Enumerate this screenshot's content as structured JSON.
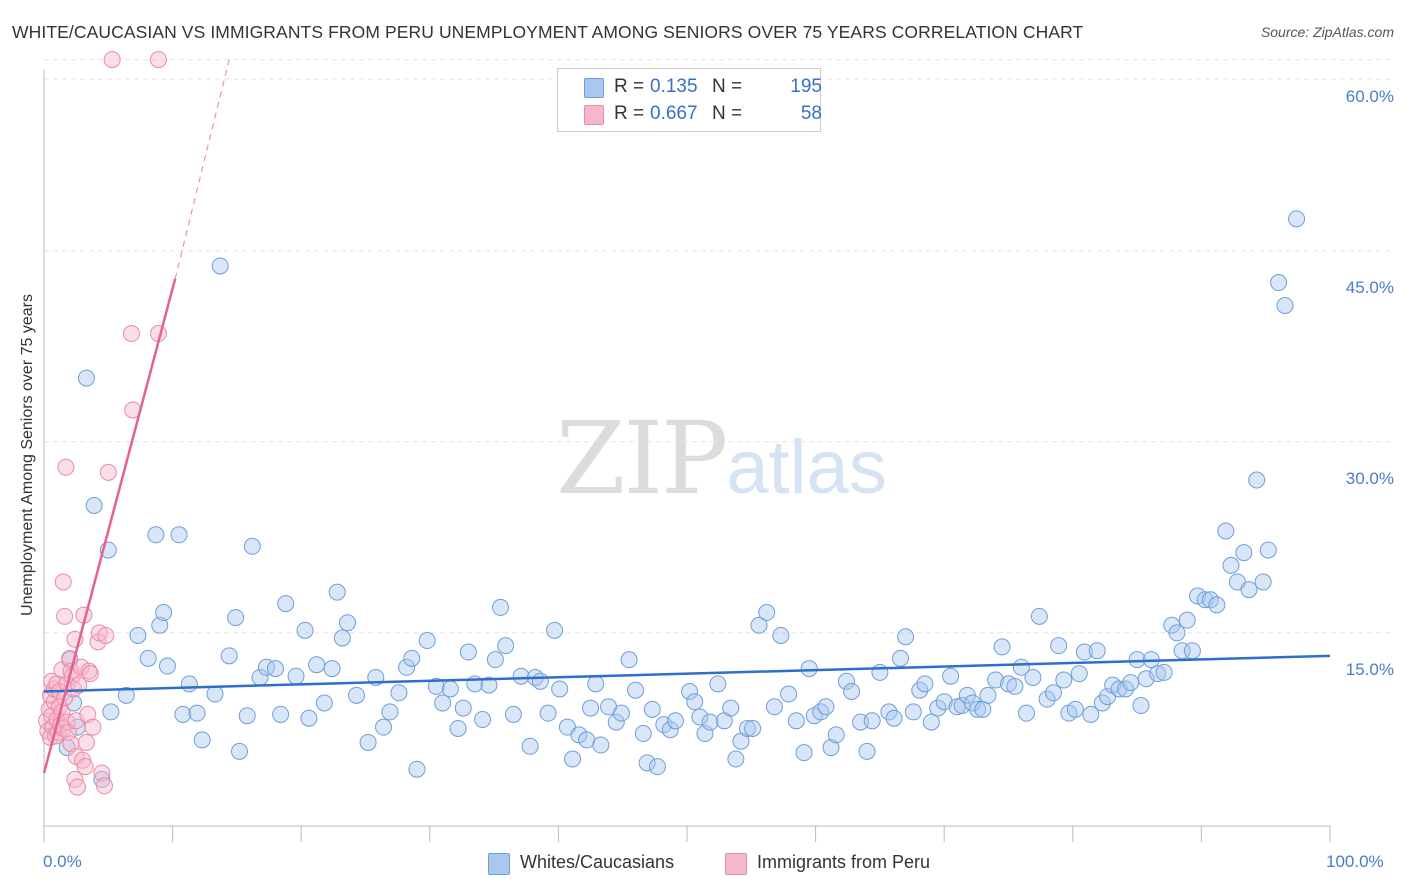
{
  "title": "WHITE/CAUCASIAN VS IMMIGRANTS FROM PERU UNEMPLOYMENT AMONG SENIORS OVER 75 YEARS CORRELATION CHART",
  "source": "Source: ZipAtlas.com",
  "watermark": {
    "zip": "ZIP",
    "atlas": "atlas"
  },
  "legend_top": [
    {
      "r_label": "R =",
      "r_value": "0.135",
      "n_label": "N =",
      "n_value": "195"
    },
    {
      "r_label": "R =",
      "r_value": "0.667",
      "n_label": "N =",
      "n_value": "58"
    }
  ],
  "legend_bottom": [
    "Whites/Caucasians",
    "Immigrants from Peru"
  ],
  "colors": {
    "series1_fill": "#a9c8ef",
    "series1_stroke": "#6f9ed8",
    "series1_line": "#2e6fcc",
    "series2_fill": "#f6b7ca",
    "series2_stroke": "#e98aa8",
    "series2_line": "#e6628e",
    "tick_label": "#4a7ccc",
    "grid": "#e2e2e2"
  },
  "chart_data": {
    "type": "scatter",
    "title": "WHITE/CAUCASIAN VS IMMIGRANTS FROM PERU UNEMPLOYMENT AMONG SENIORS OVER 75 YEARS CORRELATION CHART",
    "xlabel": "",
    "ylabel": "Unemployment Among Seniors over 75 years",
    "xlim": [
      0,
      100
    ],
    "ylim": [
      0,
      62
    ],
    "y_ticks": [
      15,
      30,
      45,
      60
    ],
    "y_tick_labels": [
      "15.0%",
      "30.0%",
      "45.0%",
      "60.0%"
    ],
    "x_tick_labels": [
      "0.0%",
      "100.0%"
    ],
    "grid": true,
    "legend": "top-center",
    "series": [
      {
        "name": "Whites/Caucasians",
        "R": 0.135,
        "N": 195,
        "trend": {
          "x": [
            0,
            100
          ],
          "y": [
            10.4,
            13.2
          ],
          "style": "solid"
        },
        "points": [
          [
            1.8,
            6.0
          ],
          [
            2.0,
            12.9
          ],
          [
            2.3,
            9.5
          ],
          [
            2.6,
            7.6
          ],
          [
            3.3,
            35.0
          ],
          [
            3.9,
            25.0
          ],
          [
            4.5,
            3.5
          ],
          [
            5.0,
            21.5
          ],
          [
            5.2,
            8.8
          ],
          [
            6.4,
            10.1
          ],
          [
            7.3,
            14.8
          ],
          [
            8.1,
            13.0
          ],
          [
            8.7,
            22.7
          ],
          [
            9.0,
            15.6
          ],
          [
            9.3,
            16.6
          ],
          [
            9.6,
            12.4
          ],
          [
            10.5,
            22.7
          ],
          [
            10.8,
            8.6
          ],
          [
            11.3,
            11.0
          ],
          [
            11.9,
            8.7
          ],
          [
            12.3,
            6.6
          ],
          [
            13.3,
            10.2
          ],
          [
            13.7,
            43.8
          ],
          [
            14.4,
            13.2
          ],
          [
            14.9,
            16.2
          ],
          [
            15.2,
            5.7
          ],
          [
            15.8,
            8.5
          ],
          [
            16.2,
            21.8
          ],
          [
            16.8,
            11.5
          ],
          [
            17.3,
            12.3
          ],
          [
            18.0,
            12.2
          ],
          [
            18.4,
            8.6
          ],
          [
            18.8,
            17.3
          ],
          [
            19.6,
            11.6
          ],
          [
            20.3,
            15.2
          ],
          [
            20.6,
            8.3
          ],
          [
            21.2,
            12.5
          ],
          [
            21.8,
            9.5
          ],
          [
            22.4,
            12.2
          ],
          [
            22.8,
            18.2
          ],
          [
            23.2,
            14.6
          ],
          [
            23.6,
            15.8
          ],
          [
            24.3,
            10.1
          ],
          [
            25.2,
            6.4
          ],
          [
            25.8,
            11.5
          ],
          [
            26.4,
            7.6
          ],
          [
            26.9,
            8.8
          ],
          [
            27.6,
            10.3
          ],
          [
            28.2,
            12.3
          ],
          [
            28.6,
            13.0
          ],
          [
            29.0,
            4.3
          ],
          [
            29.8,
            14.4
          ],
          [
            30.5,
            10.8
          ],
          [
            31.0,
            9.5
          ],
          [
            31.6,
            10.6
          ],
          [
            32.2,
            7.5
          ],
          [
            32.6,
            9.1
          ],
          [
            33.0,
            13.5
          ],
          [
            33.5,
            11.0
          ],
          [
            34.1,
            8.2
          ],
          [
            34.6,
            10.9
          ],
          [
            35.1,
            12.9
          ],
          [
            35.5,
            17.0
          ],
          [
            35.9,
            14.0
          ],
          [
            36.5,
            8.6
          ],
          [
            37.1,
            11.6
          ],
          [
            37.8,
            6.1
          ],
          [
            38.2,
            11.5
          ],
          [
            38.6,
            11.2
          ],
          [
            39.2,
            8.7
          ],
          [
            39.7,
            15.2
          ],
          [
            40.1,
            10.6
          ],
          [
            40.7,
            7.6
          ],
          [
            41.1,
            5.1
          ],
          [
            41.6,
            7.0
          ],
          [
            42.2,
            6.6
          ],
          [
            42.5,
            9.1
          ],
          [
            42.9,
            11.0
          ],
          [
            43.3,
            6.2
          ],
          [
            43.9,
            9.2
          ],
          [
            44.5,
            8.0
          ],
          [
            44.9,
            8.7
          ],
          [
            45.5,
            12.9
          ],
          [
            46.0,
            10.5
          ],
          [
            46.6,
            7.1
          ],
          [
            46.9,
            4.8
          ],
          [
            47.3,
            9.0
          ],
          [
            47.7,
            4.5
          ],
          [
            48.2,
            7.8
          ],
          [
            48.7,
            7.4
          ],
          [
            49.1,
            8.1
          ],
          [
            50.2,
            10.4
          ],
          [
            50.6,
            9.6
          ],
          [
            51.0,
            8.4
          ],
          [
            51.4,
            7.1
          ],
          [
            51.8,
            8.0
          ],
          [
            52.4,
            11.0
          ],
          [
            52.9,
            8.1
          ],
          [
            53.4,
            9.1
          ],
          [
            53.8,
            5.1
          ],
          [
            54.2,
            6.5
          ],
          [
            54.7,
            7.5
          ],
          [
            55.1,
            7.5
          ],
          [
            55.6,
            15.6
          ],
          [
            56.2,
            16.6
          ],
          [
            56.8,
            9.2
          ],
          [
            57.3,
            14.8
          ],
          [
            57.9,
            10.2
          ],
          [
            58.5,
            8.1
          ],
          [
            59.1,
            5.6
          ],
          [
            59.5,
            12.2
          ],
          [
            59.9,
            8.5
          ],
          [
            60.4,
            8.8
          ],
          [
            60.8,
            9.2
          ],
          [
            61.2,
            6.0
          ],
          [
            61.6,
            7.0
          ],
          [
            62.4,
            11.2
          ],
          [
            62.8,
            10.4
          ],
          [
            63.5,
            8.0
          ],
          [
            64.0,
            5.7
          ],
          [
            64.4,
            8.1
          ],
          [
            65.0,
            11.9
          ],
          [
            65.7,
            8.8
          ],
          [
            66.1,
            8.3
          ],
          [
            66.6,
            13.0
          ],
          [
            67.0,
            14.7
          ],
          [
            67.6,
            8.8
          ],
          [
            68.1,
            10.5
          ],
          [
            68.5,
            11.0
          ],
          [
            69.0,
            8.0
          ],
          [
            69.5,
            9.1
          ],
          [
            70.0,
            9.6
          ],
          [
            70.5,
            11.6
          ],
          [
            71.0,
            9.2
          ],
          [
            71.4,
            9.3
          ],
          [
            71.8,
            10.1
          ],
          [
            72.2,
            9.5
          ],
          [
            72.6,
            9.0
          ],
          [
            73.0,
            9.0
          ],
          [
            73.4,
            10.1
          ],
          [
            74.0,
            11.3
          ],
          [
            74.5,
            13.9
          ],
          [
            75.0,
            11.0
          ],
          [
            75.5,
            10.8
          ],
          [
            76.0,
            12.3
          ],
          [
            76.4,
            8.7
          ],
          [
            76.9,
            11.5
          ],
          [
            77.4,
            16.3
          ],
          [
            78.0,
            9.8
          ],
          [
            78.5,
            10.3
          ],
          [
            78.9,
            14.0
          ],
          [
            79.3,
            11.3
          ],
          [
            79.7,
            8.7
          ],
          [
            80.2,
            9.0
          ],
          [
            80.5,
            11.8
          ],
          [
            80.9,
            13.5
          ],
          [
            81.4,
            8.6
          ],
          [
            81.9,
            13.6
          ],
          [
            82.3,
            9.5
          ],
          [
            82.7,
            10.0
          ],
          [
            83.1,
            10.9
          ],
          [
            83.6,
            10.6
          ],
          [
            84.1,
            10.6
          ],
          [
            84.5,
            11.1
          ],
          [
            85.0,
            12.9
          ],
          [
            85.3,
            9.3
          ],
          [
            85.7,
            11.4
          ],
          [
            86.1,
            12.9
          ],
          [
            86.6,
            11.8
          ],
          [
            87.1,
            11.9
          ],
          [
            87.7,
            15.6
          ],
          [
            88.1,
            15.0
          ],
          [
            88.5,
            13.6
          ],
          [
            88.9,
            16.0
          ],
          [
            89.3,
            13.6
          ],
          [
            89.7,
            17.9
          ],
          [
            90.3,
            17.6
          ],
          [
            90.7,
            17.6
          ],
          [
            91.2,
            17.2
          ],
          [
            91.9,
            23.0
          ],
          [
            92.3,
            20.3
          ],
          [
            92.8,
            19.0
          ],
          [
            93.3,
            21.3
          ],
          [
            93.7,
            18.4
          ],
          [
            94.3,
            27.0
          ],
          [
            94.8,
            19.0
          ],
          [
            95.2,
            21.5
          ],
          [
            96.0,
            42.5
          ],
          [
            96.5,
            40.7
          ],
          [
            97.4,
            47.5
          ]
        ]
      },
      {
        "name": "Immigrants from Peru",
        "R": 0.667,
        "N": 58,
        "trend": {
          "x": [
            0,
            10.2
          ],
          "y": [
            4.0,
            42.8
          ],
          "style": "solid",
          "extension": {
            "x": [
              10.2,
              14.4
            ],
            "y": [
              42.8,
              60.0
            ],
            "style": "dashed"
          }
        },
        "points": [
          [
            0.2,
            8.1
          ],
          [
            0.3,
            7.3
          ],
          [
            0.4,
            9.0
          ],
          [
            0.5,
            10.1
          ],
          [
            0.5,
            6.8
          ],
          [
            0.6,
            11.2
          ],
          [
            0.6,
            8.5
          ],
          [
            0.7,
            7.6
          ],
          [
            0.8,
            9.6
          ],
          [
            0.8,
            10.6
          ],
          [
            0.9,
            6.9
          ],
          [
            1.0,
            8.2
          ],
          [
            1.0,
            11.0
          ],
          [
            1.1,
            7.2
          ],
          [
            1.2,
            9.2
          ],
          [
            1.2,
            10.4
          ],
          [
            1.3,
            7.8
          ],
          [
            1.4,
            8.8
          ],
          [
            1.4,
            12.1
          ],
          [
            1.5,
            19.0
          ],
          [
            1.5,
            7.5
          ],
          [
            1.6,
            16.3
          ],
          [
            1.6,
            9.9
          ],
          [
            1.7,
            28.0
          ],
          [
            1.8,
            11.0
          ],
          [
            1.8,
            8.0
          ],
          [
            1.9,
            7.2
          ],
          [
            2.0,
            13.0
          ],
          [
            2.1,
            12.0
          ],
          [
            2.1,
            6.3
          ],
          [
            2.2,
            11.6
          ],
          [
            2.3,
            10.6
          ],
          [
            2.4,
            14.5
          ],
          [
            2.4,
            3.5
          ],
          [
            2.5,
            5.3
          ],
          [
            2.5,
            8.1
          ],
          [
            2.6,
            2.9
          ],
          [
            2.7,
            10.9
          ],
          [
            2.9,
            12.3
          ],
          [
            3.0,
            5.0
          ],
          [
            3.1,
            16.4
          ],
          [
            3.2,
            4.5
          ],
          [
            3.3,
            6.4
          ],
          [
            3.4,
            8.6
          ],
          [
            3.5,
            12.0
          ],
          [
            3.6,
            11.8
          ],
          [
            3.8,
            7.6
          ],
          [
            4.2,
            14.3
          ],
          [
            4.3,
            15.0
          ],
          [
            4.5,
            4.0
          ],
          [
            4.7,
            3.0
          ],
          [
            4.8,
            14.8
          ],
          [
            5.0,
            27.6
          ],
          [
            6.8,
            38.5
          ],
          [
            6.9,
            32.5
          ],
          [
            8.9,
            38.5
          ],
          [
            5.3,
            60.0
          ],
          [
            8.9,
            60.0
          ]
        ]
      }
    ]
  }
}
